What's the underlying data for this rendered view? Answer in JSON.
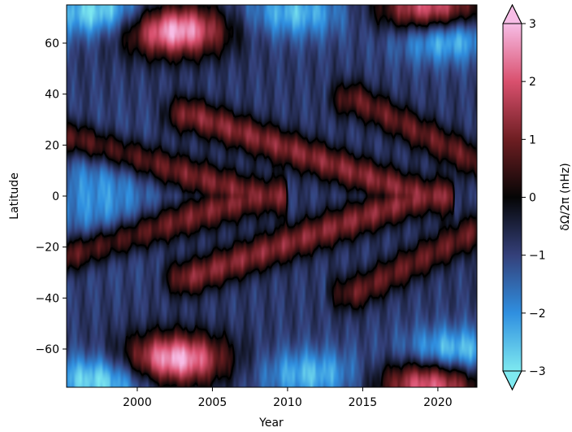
{
  "chart_data": {
    "type": "heatmap",
    "xlabel": "Year",
    "ylabel": "Latitude",
    "colorbar_label": "δΩ/2π (nHz)",
    "xlim": [
      1995.3,
      2022.6
    ],
    "ylim": [
      -75,
      75
    ],
    "clim": [
      -3,
      3
    ],
    "colorbar_extend": "both",
    "x_ticks": [
      2000,
      2005,
      2010,
      2015,
      2020
    ],
    "x_tick_labels": [
      "2000",
      "2005",
      "2010",
      "2015",
      "2020"
    ],
    "y_ticks": [
      -60,
      -40,
      -20,
      0,
      20,
      40,
      60
    ],
    "y_tick_labels": [
      "−60",
      "−40",
      "−20",
      "0",
      "20",
      "40",
      "60"
    ],
    "colorbar_ticks": [
      -3,
      -2,
      -1,
      0,
      1,
      2,
      3
    ],
    "colorbar_tick_labels": [
      "−3",
      "−2",
      "−1",
      "0",
      "1",
      "2",
      "3"
    ],
    "contour_level": 0,
    "colormap": [
      {
        "value": -3,
        "color": "#7ee9f0"
      },
      {
        "value": -2,
        "color": "#2f8fe0"
      },
      {
        "value": -1,
        "color": "#34407a"
      },
      {
        "value": 0,
        "color": "#050505"
      },
      {
        "value": 1,
        "color": "#6e1e22"
      },
      {
        "value": 2,
        "color": "#d9506e"
      },
      {
        "value": 3,
        "color": "#f7bde6"
      }
    ],
    "features": {
      "equatorward_fast_bands": [
        {
          "start_year": 1995.5,
          "start_lat": 23,
          "end_year": 2008,
          "end_lat": 0,
          "amplitude": 1.7
        },
        {
          "start_year": 2003.5,
          "start_lat": 32,
          "end_year": 2019,
          "end_lat": 0,
          "amplitude": 1.8
        },
        {
          "start_year": 2014.5,
          "start_lat": 38,
          "end_year": 2027,
          "end_lat": 0,
          "amplitude": 1.5
        }
      ],
      "polar_patches": [
        {
          "year": 2002.5,
          "lat": 65,
          "value": 3.0
        },
        {
          "year": 2002.5,
          "lat": -64,
          "value": 3.0
        },
        {
          "year": 1997.5,
          "lat": 72,
          "value": -3.0
        },
        {
          "year": 1997.5,
          "lat": -72,
          "value": -3.0
        },
        {
          "year": 2010.5,
          "lat": 72,
          "value": -2.5
        },
        {
          "year": 2011.5,
          "lat": -70,
          "value": -2.5
        },
        {
          "year": 2020.5,
          "lat": 63,
          "value": -3.0
        },
        {
          "year": 2021.0,
          "lat": -62,
          "value": -3.0
        },
        {
          "year": 2019.5,
          "lat": 73,
          "value": 2.5
        },
        {
          "year": 2019.5,
          "lat": -73,
          "value": 2.5
        }
      ],
      "equatorial_slow_region": {
        "year": 1997.5,
        "lat": 0,
        "value": -2.0
      }
    }
  }
}
